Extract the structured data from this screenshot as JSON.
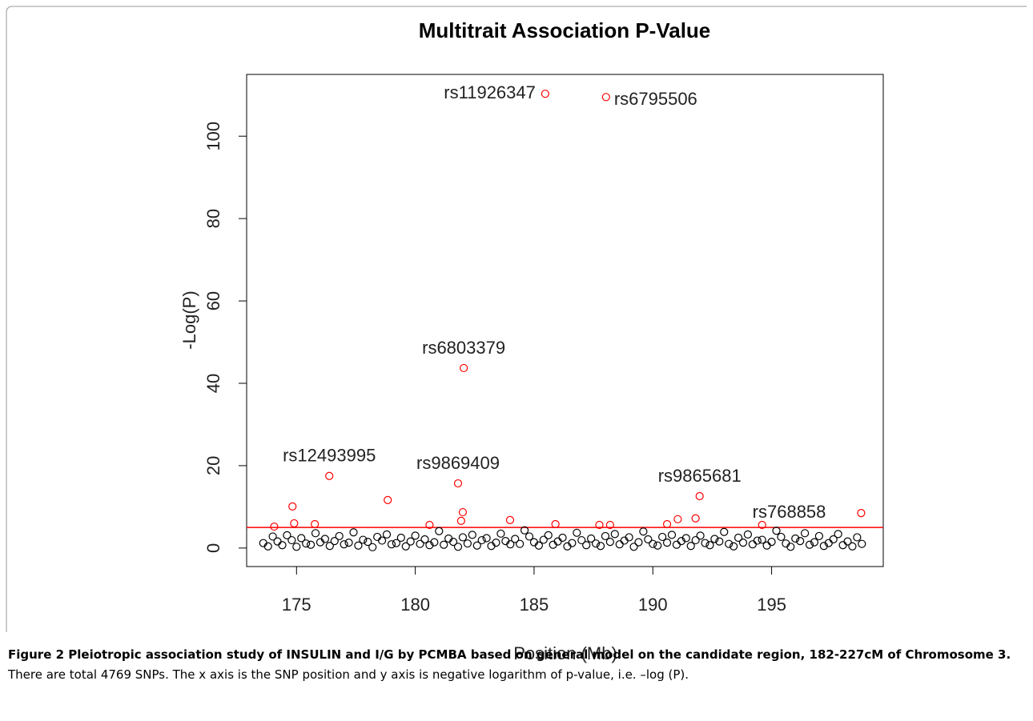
{
  "chart_data": {
    "type": "scatter",
    "title": "Multitrait Association P-Value",
    "x_label": "Position (Mb)",
    "y_label": "-Log(P)",
    "xlim": [
      172.9,
      199.7
    ],
    "ylim": [
      -4.5,
      115
    ],
    "xticks": [
      175,
      180,
      185,
      190,
      195
    ],
    "yticks": [
      0,
      20,
      40,
      60,
      80,
      100
    ],
    "hline": {
      "value": 5,
      "color": "#ff0000"
    },
    "series": [
      {
        "color": "#000000",
        "x": [
          173.6,
          173.8,
          174.0,
          174.2,
          174.4,
          174.6,
          174.8,
          175.0,
          175.2,
          175.4,
          175.6,
          175.8,
          176.0,
          176.2,
          176.4,
          176.6,
          176.8,
          177.0,
          177.2,
          177.4,
          177.6,
          177.8,
          178.0,
          178.2,
          178.4,
          178.6,
          178.8,
          179.0,
          179.2,
          179.4,
          179.6,
          179.8,
          180.0,
          180.2,
          180.4,
          180.6,
          180.8,
          181.0,
          181.2,
          181.4,
          181.6,
          181.8,
          182.0,
          182.2,
          182.4,
          182.6,
          182.8,
          183.0,
          183.2,
          183.4,
          183.6,
          183.8,
          184.0,
          184.2,
          184.4,
          184.6,
          184.8,
          185.0,
          185.2,
          185.4,
          185.6,
          185.8,
          186.0,
          186.2,
          186.4,
          186.6,
          186.8,
          187.0,
          187.2,
          187.4,
          187.6,
          187.8,
          188.0,
          188.2,
          188.4,
          188.6,
          188.8,
          189.0,
          189.2,
          189.4,
          189.6,
          189.8,
          190.0,
          190.2,
          190.4,
          190.6,
          190.8,
          191.0,
          191.2,
          191.4,
          191.6,
          191.8,
          192.0,
          192.2,
          192.4,
          192.6,
          192.8,
          193.0,
          193.2,
          193.4,
          193.6,
          193.8,
          194.0,
          194.2,
          194.4,
          194.6,
          194.8,
          195.0,
          195.2,
          195.4,
          195.6,
          195.8,
          196.0,
          196.2,
          196.4,
          196.6,
          196.8,
          197.0,
          197.2,
          197.4,
          197.6,
          197.8,
          198.0,
          198.2,
          198.4,
          198.6,
          198.8
        ],
        "values": [
          1.2,
          0.4,
          2.8,
          1.6,
          0.7,
          3.1,
          1.9,
          0.3,
          2.4,
          1.1,
          0.8,
          3.6,
          1.4,
          2.2,
          0.5,
          1.7,
          2.9,
          0.9,
          1.3,
          3.8,
          0.6,
          2.0,
          1.5,
          0.2,
          2.7,
          1.8,
          3.3,
          0.9,
          1.2,
          2.5,
          0.4,
          1.6,
          3.0,
          1.0,
          2.1,
          0.7,
          1.4,
          4.1,
          0.8,
          2.3,
          1.5,
          0.3,
          2.6,
          1.1,
          3.2,
          0.6,
          1.9,
          2.4,
          0.5,
          1.3,
          3.5,
          1.7,
          0.9,
          2.2,
          1.0,
          4.3,
          2.8,
          1.4,
          0.6,
          2.0,
          3.1,
          0.8,
          1.6,
          2.5,
          0.4,
          1.2,
          3.7,
          1.9,
          0.7,
          2.3,
          1.1,
          0.5,
          2.9,
          1.5,
          3.4,
          0.9,
          1.8,
          2.6,
          0.3,
          1.4,
          4.0,
          2.1,
          1.0,
          0.6,
          2.7,
          1.3,
          3.2,
          0.8,
          1.7,
          2.4,
          0.5,
          1.9,
          3.0,
          1.2,
          0.7,
          2.2,
          1.6,
          3.9,
          1.0,
          0.4,
          2.5,
          1.3,
          3.3,
          0.9,
          1.8,
          2.0,
          0.6,
          1.5,
          4.2,
          2.7,
          1.1,
          0.3,
          2.3,
          1.7,
          3.6,
          0.8,
          1.4,
          2.9,
          0.5,
          1.2,
          2.1,
          3.4,
          0.7,
          1.6,
          0.4,
          2.6,
          1.0
        ]
      },
      {
        "color": "#ff0000",
        "x": [
          185.47,
          188.03,
          182.04,
          176.38,
          181.8,
          191.97,
          198.77,
          174.83,
          178.84,
          182.0,
          183.99,
          174.06,
          174.9,
          175.77,
          185.9,
          187.75,
          188.2,
          190.6,
          191.05,
          191.8,
          194.6,
          180.6,
          181.93
        ],
        "values": [
          110.3,
          109.5,
          43.7,
          17.5,
          15.7,
          12.6,
          8.5,
          10.1,
          11.65,
          8.7,
          6.8,
          5.2,
          6.0,
          5.8,
          5.8,
          5.6,
          5.6,
          5.8,
          7.0,
          7.2,
          5.6,
          5.6,
          6.6
        ],
        "labels": [
          "rs11926347",
          "rs6795506",
          "rs6803379",
          "rs12493995",
          "rs9869409",
          "rs9865681",
          "rs768858",
          null,
          null,
          null,
          null,
          null,
          null,
          null,
          null,
          null,
          null,
          null,
          null,
          null,
          null,
          null,
          null
        ]
      }
    ]
  },
  "caption": {
    "label": "Figure 2 Pleiotropic association study of INSULIN and I/G by PCMBA based on general model on the candidate region, 182-227cM of Chromosome 3.",
    "text": "There are total 4769 SNPs. The x axis is the SNP position and y axis is negative logarithm of p-value, i.e. –log (P)."
  }
}
